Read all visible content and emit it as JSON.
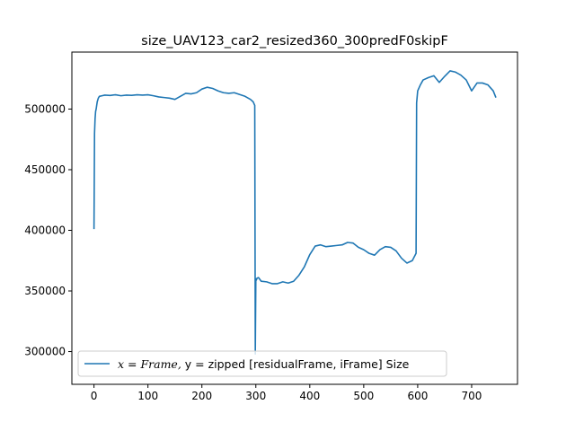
{
  "chart_data": {
    "type": "line",
    "title": "size_UAV123_car2_resized360_300predF0skipF",
    "xlabel": "",
    "ylabel": "",
    "xlim": [
      -41,
      785
    ],
    "ylim": [
      273000,
      547000
    ],
    "xticks": [
      0,
      100,
      200,
      300,
      400,
      500,
      600,
      700
    ],
    "yticks": [
      300000,
      350000,
      400000,
      450000,
      500000
    ],
    "ytick_labels": [
      "300000",
      "350000",
      "400000",
      "450000",
      "500000"
    ],
    "grid": false,
    "legend_location": "lower left",
    "legend": {
      "math_part": "x = Frame,",
      "text_part": " y =  zipped [residualFrame, iFrame] Size"
    },
    "series": [
      {
        "color": "#1f77b4",
        "x": [
          0,
          1,
          2,
          3,
          4,
          5,
          6,
          8,
          10,
          15,
          20,
          30,
          40,
          50,
          60,
          70,
          80,
          90,
          100,
          110,
          120,
          130,
          140,
          150,
          160,
          170,
          180,
          190,
          200,
          210,
          220,
          230,
          240,
          250,
          260,
          270,
          280,
          290,
          295,
          298,
          299,
          300,
          301,
          302,
          305,
          310,
          320,
          330,
          340,
          350,
          360,
          370,
          380,
          390,
          400,
          410,
          420,
          430,
          440,
          450,
          460,
          470,
          480,
          490,
          500,
          510,
          520,
          530,
          540,
          550,
          560,
          570,
          580,
          590,
          597,
          598,
          600,
          605,
          610,
          620,
          630,
          640,
          650,
          660,
          670,
          680,
          690,
          700,
          710,
          720,
          730,
          740,
          745
        ],
        "y": [
          401000,
          480000,
          492000,
          498000,
          500000,
          503000,
          506000,
          509000,
          510500,
          511000,
          511500,
          511200,
          511800,
          511000,
          511500,
          511300,
          511800,
          511500,
          511800,
          511000,
          510000,
          509500,
          509000,
          508000,
          510500,
          513000,
          512500,
          513500,
          516500,
          518000,
          517000,
          515000,
          513500,
          513000,
          513500,
          512000,
          510500,
          508000,
          506000,
          503000,
          298000,
          360000,
          359000,
          360500,
          361000,
          358000,
          357500,
          356000,
          356000,
          357500,
          356500,
          358000,
          363000,
          370000,
          380000,
          387000,
          388000,
          386500,
          387000,
          387500,
          388000,
          390000,
          389500,
          386000,
          384000,
          381000,
          379500,
          384000,
          386500,
          386000,
          383000,
          377000,
          373000,
          375000,
          381000,
          505000,
          515000,
          520000,
          524000,
          526000,
          527500,
          522000,
          527000,
          531500,
          530500,
          528000,
          524000,
          515000,
          521500,
          521500,
          520000,
          515000,
          509500
        ]
      }
    ]
  }
}
